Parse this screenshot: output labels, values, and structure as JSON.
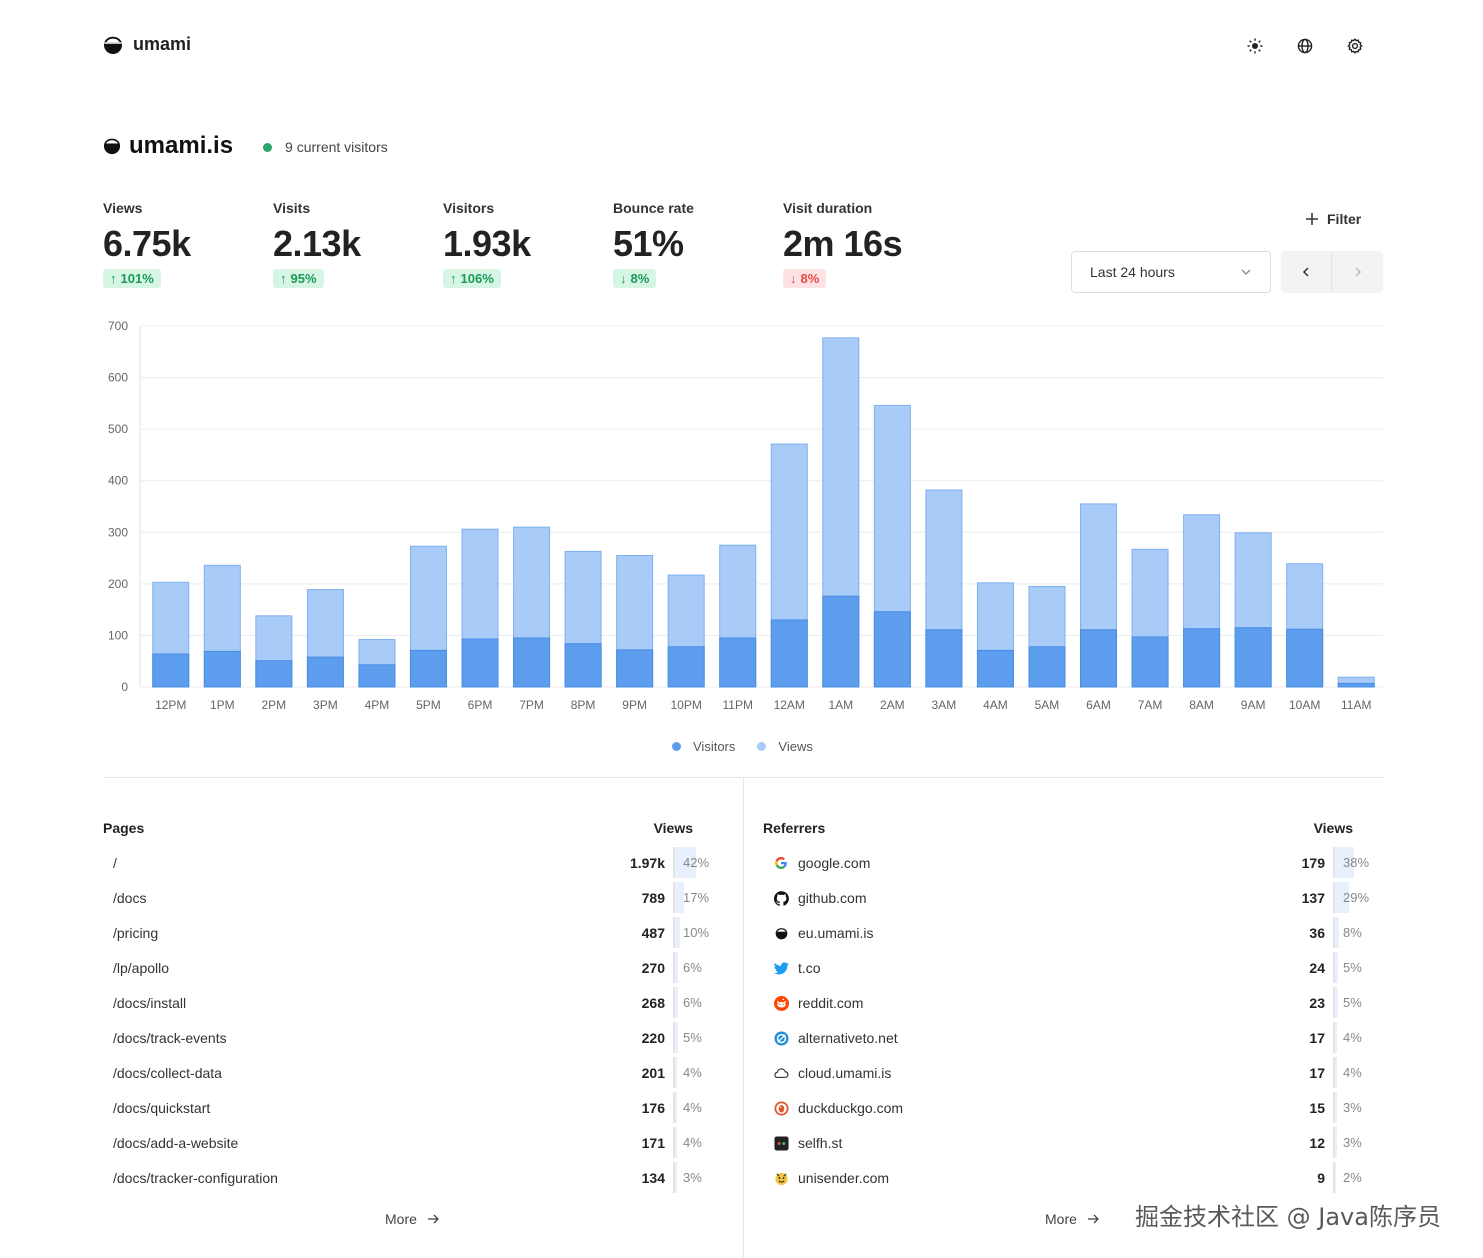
{
  "app": {
    "name": "umami"
  },
  "header": {
    "icons": [
      "sun-icon",
      "globe-icon",
      "gear-icon"
    ]
  },
  "site": {
    "name": "umami.is",
    "live_text": "9 current visitors"
  },
  "metrics": [
    {
      "label": "Views",
      "value": "6.75k",
      "change": "101%",
      "direction": "up",
      "tone": "good"
    },
    {
      "label": "Visits",
      "value": "2.13k",
      "change": "95%",
      "direction": "up",
      "tone": "good"
    },
    {
      "label": "Visitors",
      "value": "1.93k",
      "change": "106%",
      "direction": "up",
      "tone": "good"
    },
    {
      "label": "Bounce rate",
      "value": "51%",
      "change": "8%",
      "direction": "down",
      "tone": "good"
    },
    {
      "label": "Visit duration",
      "value": "2m 16s",
      "change": "8%",
      "direction": "down",
      "tone": "bad"
    }
  ],
  "controls": {
    "filter_label": "Filter",
    "range_label": "Last 24 hours"
  },
  "chart_data": {
    "type": "bar",
    "categories": [
      "12PM",
      "1PM",
      "2PM",
      "3PM",
      "4PM",
      "5PM",
      "6PM",
      "7PM",
      "8PM",
      "9PM",
      "10PM",
      "11PM",
      "12AM",
      "1AM",
      "2AM",
      "3AM",
      "4AM",
      "5AM",
      "6AM",
      "7AM",
      "8AM",
      "9AM",
      "10AM",
      "11AM"
    ],
    "series": [
      {
        "name": "Visitors",
        "color": "#5c9ded",
        "values": [
          64,
          69,
          51,
          58,
          43,
          71,
          93,
          95,
          84,
          72,
          78,
          95,
          130,
          176,
          146,
          111,
          71,
          78,
          111,
          97,
          113,
          115,
          112,
          7
        ]
      },
      {
        "name": "Views",
        "color": "#a9cbf7",
        "values": [
          203,
          236,
          138,
          189,
          92,
          273,
          306,
          310,
          263,
          255,
          217,
          275,
          471,
          677,
          546,
          382,
          202,
          195,
          355,
          267,
          334,
          299,
          239,
          19
        ]
      }
    ],
    "yticks": [
      0,
      100,
      200,
      300,
      400,
      500,
      600,
      700
    ],
    "ylim": [
      0,
      700
    ],
    "stacking": "overlay",
    "grid": true,
    "legend": "bottom-center"
  },
  "pages": {
    "title": "Pages",
    "metric": "Views",
    "rows": [
      {
        "label": "/",
        "value": "1.97k",
        "pct": "42%",
        "share": 0.42
      },
      {
        "label": "/docs",
        "value": "789",
        "pct": "17%",
        "share": 0.17
      },
      {
        "label": "/pricing",
        "value": "487",
        "pct": "10%",
        "share": 0.1
      },
      {
        "label": "/lp/apollo",
        "value": "270",
        "pct": "6%",
        "share": 0.06
      },
      {
        "label": "/docs/install",
        "value": "268",
        "pct": "6%",
        "share": 0.06
      },
      {
        "label": "/docs/track-events",
        "value": "220",
        "pct": "5%",
        "share": 0.05
      },
      {
        "label": "/docs/collect-data",
        "value": "201",
        "pct": "4%",
        "share": 0.04
      },
      {
        "label": "/docs/quickstart",
        "value": "176",
        "pct": "4%",
        "share": 0.04
      },
      {
        "label": "/docs/add-a-website",
        "value": "171",
        "pct": "4%",
        "share": 0.04
      },
      {
        "label": "/docs/tracker-configuration",
        "value": "134",
        "pct": "3%",
        "share": 0.03
      }
    ],
    "more_label": "More"
  },
  "referrers": {
    "title": "Referrers",
    "metric": "Views",
    "rows": [
      {
        "label": "google.com",
        "icon": "google-icon",
        "value": "179",
        "pct": "38%",
        "share": 0.38
      },
      {
        "label": "github.com",
        "icon": "github-icon",
        "value": "137",
        "pct": "29%",
        "share": 0.29
      },
      {
        "label": "eu.umami.is",
        "icon": "umami-icon",
        "value": "36",
        "pct": "8%",
        "share": 0.08
      },
      {
        "label": "t.co",
        "icon": "twitter-icon",
        "value": "24",
        "pct": "5%",
        "share": 0.05
      },
      {
        "label": "reddit.com",
        "icon": "reddit-icon",
        "value": "23",
        "pct": "5%",
        "share": 0.05
      },
      {
        "label": "alternativeto.net",
        "icon": "alternativeto-icon",
        "value": "17",
        "pct": "4%",
        "share": 0.04
      },
      {
        "label": "cloud.umami.is",
        "icon": "cloud-icon",
        "value": "17",
        "pct": "4%",
        "share": 0.04
      },
      {
        "label": "duckduckgo.com",
        "icon": "duckduckgo-icon",
        "value": "15",
        "pct": "3%",
        "share": 0.03
      },
      {
        "label": "selfh.st",
        "icon": "selfhst-icon",
        "value": "12",
        "pct": "3%",
        "share": 0.03
      },
      {
        "label": "unisender.com",
        "icon": "unisender-icon",
        "value": "9",
        "pct": "2%",
        "share": 0.02
      }
    ],
    "more_label": "More"
  },
  "watermark": "掘金技术社区 @ Java陈序员"
}
